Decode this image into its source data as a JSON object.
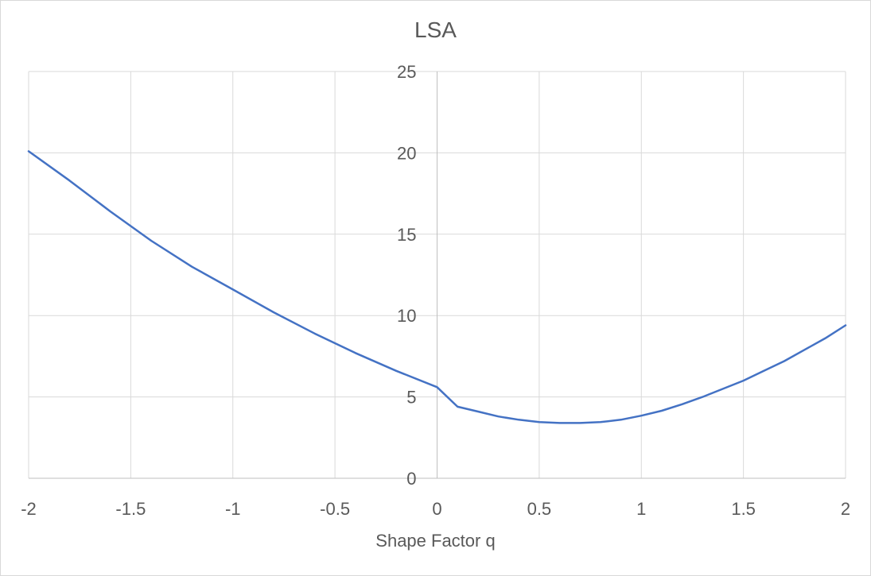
{
  "chart_data": {
    "type": "line",
    "title": "LSA",
    "xlabel": "Shape Factor q",
    "ylabel": "",
    "xlim": [
      -2,
      2
    ],
    "ylim": [
      0,
      25
    ],
    "x_ticks": [
      "-2",
      "-1.5",
      "-1",
      "-0.5",
      "0",
      "0.5",
      "1",
      "1.5",
      "2"
    ],
    "y_ticks": [
      "0",
      "5",
      "10",
      "15",
      "20",
      "25"
    ],
    "grid": true,
    "legend": "none",
    "series": [
      {
        "color": "#4472C4",
        "x": [
          -2.0,
          -1.8,
          -1.6,
          -1.4,
          -1.2,
          -1.0,
          -0.8,
          -0.6,
          -0.4,
          -0.2,
          0.0,
          0.1,
          0.2,
          0.3,
          0.4,
          0.5,
          0.6,
          0.7,
          0.8,
          0.9,
          1.0,
          1.1,
          1.2,
          1.3,
          1.4,
          1.5,
          1.6,
          1.7,
          1.8,
          1.9,
          2.0
        ],
        "y": [
          20.1,
          18.3,
          16.4,
          14.6,
          13.0,
          11.6,
          10.2,
          8.9,
          7.7,
          6.6,
          5.6,
          4.4,
          4.1,
          3.8,
          3.6,
          3.45,
          3.4,
          3.4,
          3.45,
          3.6,
          3.85,
          4.15,
          4.55,
          5.0,
          5.5,
          6.0,
          6.6,
          7.2,
          7.9,
          8.6,
          9.4
        ]
      }
    ]
  }
}
